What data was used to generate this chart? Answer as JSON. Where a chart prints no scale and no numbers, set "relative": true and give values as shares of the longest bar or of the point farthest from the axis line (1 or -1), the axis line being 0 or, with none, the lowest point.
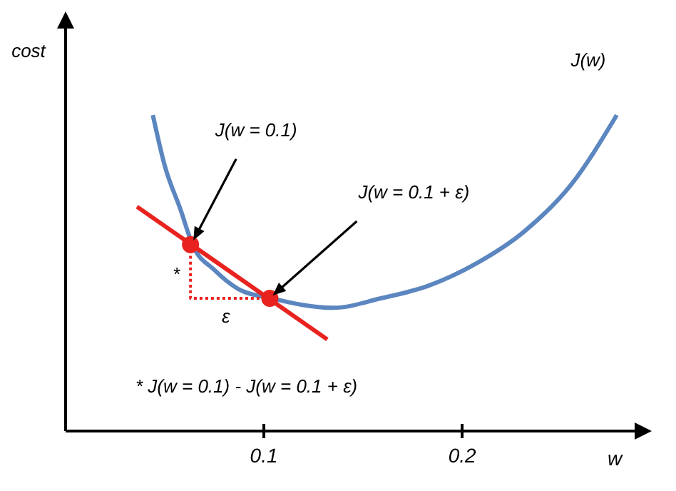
{
  "chart_data": {
    "type": "line",
    "relative": true,
    "xlabel": "w",
    "ylabel": "cost",
    "xlim": [
      0,
      0.287
    ],
    "xticks": [
      0.1,
      0.2
    ],
    "grid": false,
    "series": [
      {
        "name": "J(w)",
        "color": "#5b86c0",
        "x": [
          0.044,
          0.05,
          0.058,
          0.064,
          0.075,
          0.087,
          0.104,
          0.135,
          0.159,
          0.183,
          0.207,
          0.231,
          0.255,
          0.278
        ],
        "values": [
          1,
          0.84,
          0.7,
          0.59,
          0.51,
          0.45,
          0.42,
          0.39,
          0.42,
          0.46,
          0.53,
          0.63,
          0.78,
          1
        ]
      },
      {
        "color": "#e8221e",
        "x": [
          0.036,
          0.132
        ],
        "values": [
          0.71,
          0.29
        ]
      },
      {
        "line_style": "dotted",
        "color": "#e8221e",
        "x": [
          0.063,
          0.063,
          0.103
        ],
        "values": [
          0.59,
          0.42,
          0.42
        ]
      },
      {
        "type": "scatter",
        "marker": "circle",
        "color": "#e8221e",
        "x": [
          0.063,
          0.103
        ],
        "values": [
          0.59,
          0.42
        ]
      }
    ],
    "annotations": [
      {
        "text": "J(w = 0.1)",
        "x": 0.063,
        "y": 0.59
      },
      {
        "text": "J(w = 0.1 + ε)",
        "x": 0.103,
        "y": 0.42
      },
      {
        "text": "*",
        "x": 0.063,
        "y": 0.5
      },
      {
        "text": "ε",
        "x": 0.083,
        "y": 0.42
      },
      "* J(w = 0.1) - J(w = 0.1 + ε)"
    ]
  }
}
